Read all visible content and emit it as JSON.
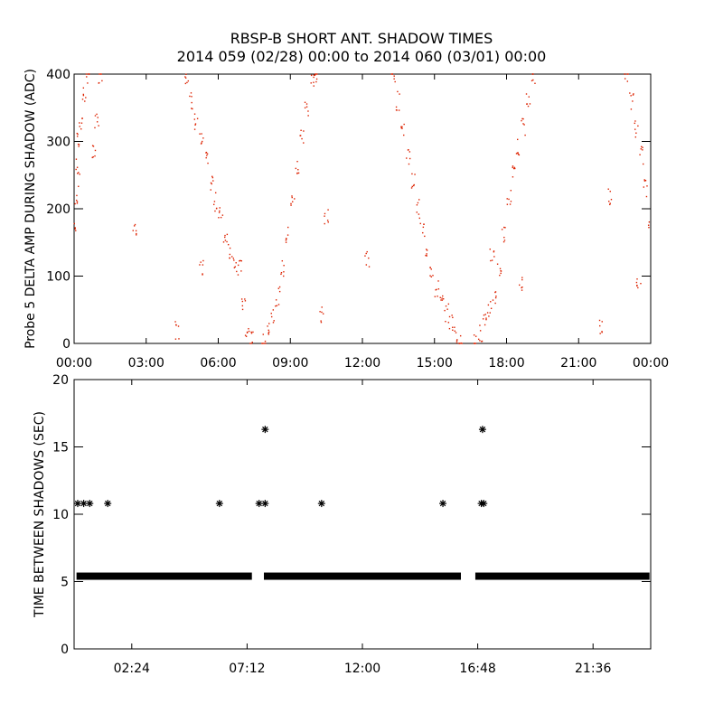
{
  "title_line1": "RBSP-B SHORT ANT. SHADOW TIMES",
  "title_line2": "2014 059 (02/28) 00:00 to 2014 060 (03/01) 00:00",
  "chart_data": [
    {
      "type": "scatter",
      "panel": "top",
      "ylabel": "Probe 5 DELTA AMP DURING SHADOW (ADC)",
      "xlabel": "",
      "xlim": [
        "00:00",
        "24:00"
      ],
      "ylim": [
        0,
        400
      ],
      "x_ticks": [
        "00:00",
        "03:00",
        "06:00",
        "09:00",
        "12:00",
        "15:00",
        "18:00",
        "21:00",
        "00:00"
      ],
      "y_ticks": [
        0,
        100,
        200,
        300,
        400
      ],
      "color": "#dd2200",
      "series": [
        {
          "points_hours_adc": [
            [
              0.05,
              170
            ],
            [
              0.1,
              220
            ],
            [
              0.15,
              260
            ],
            [
              0.2,
              300
            ],
            [
              0.3,
              330
            ],
            [
              0.4,
              370
            ],
            [
              0.55,
              400
            ],
            [
              0.85,
              280
            ],
            [
              0.95,
              330
            ],
            [
              1.1,
              400
            ],
            [
              4.7,
              400
            ],
            [
              4.9,
              360
            ],
            [
              5.1,
              330
            ],
            [
              5.3,
              300
            ],
            [
              5.5,
              270
            ],
            [
              5.7,
              240
            ],
            [
              5.9,
              210
            ],
            [
              6.1,
              190
            ],
            [
              6.3,
              160
            ],
            [
              6.5,
              140
            ],
            [
              6.7,
              120
            ],
            [
              6.9,
              110
            ],
            [
              7.05,
              60
            ],
            [
              7.2,
              15
            ],
            [
              7.4,
              5
            ],
            [
              7.9,
              0
            ],
            [
              8.1,
              25
            ],
            [
              8.3,
              45
            ],
            [
              8.5,
              70
            ],
            [
              8.7,
              110
            ],
            [
              8.9,
              160
            ],
            [
              9.1,
              210
            ],
            [
              9.3,
              260
            ],
            [
              9.5,
              310
            ],
            [
              9.7,
              350
            ],
            [
              9.9,
              390
            ],
            [
              10.1,
              400
            ],
            [
              13.3,
              400
            ],
            [
              13.5,
              360
            ],
            [
              13.7,
              320
            ],
            [
              13.9,
              280
            ],
            [
              14.1,
              240
            ],
            [
              14.3,
              200
            ],
            [
              14.5,
              170
            ],
            [
              14.7,
              140
            ],
            [
              14.9,
              110
            ],
            [
              15.1,
              80
            ],
            [
              15.3,
              60
            ],
            [
              15.5,
              45
            ],
            [
              15.7,
              30
            ],
            [
              15.9,
              15
            ],
            [
              16.1,
              0
            ],
            [
              16.7,
              0
            ],
            [
              16.9,
              15
            ],
            [
              17.1,
              30
            ],
            [
              17.3,
              50
            ],
            [
              17.5,
              70
            ],
            [
              17.7,
              110
            ],
            [
              17.9,
              160
            ],
            [
              18.1,
              220
            ],
            [
              18.3,
              260
            ],
            [
              18.5,
              290
            ],
            [
              18.7,
              320
            ],
            [
              18.9,
              360
            ],
            [
              19.1,
              400
            ],
            [
              23.0,
              400
            ],
            [
              23.2,
              360
            ],
            [
              23.4,
              320
            ],
            [
              23.6,
              280
            ],
            [
              23.8,
              230
            ],
            [
              24.0,
              180
            ],
            [
              2.5,
              165
            ],
            [
              4.3,
              20
            ],
            [
              5.3,
              110
            ],
            [
              10.3,
              45
            ],
            [
              10.5,
              190
            ],
            [
              12.2,
              125
            ],
            [
              17.4,
              130
            ],
            [
              18.6,
              90
            ],
            [
              21.9,
              25
            ],
            [
              22.3,
              220
            ],
            [
              23.5,
              95
            ]
          ]
        }
      ]
    },
    {
      "type": "scatter",
      "panel": "bottom",
      "ylabel": "TIME BETWEEN SHADOWS (SEC)",
      "xlabel": "",
      "xlim": [
        "00:00",
        "24:00"
      ],
      "ylim": [
        0,
        20
      ],
      "x_ticks": [
        "02:24",
        "07:12",
        "12:00",
        "16:48",
        "21:36"
      ],
      "y_ticks": [
        0,
        5,
        10,
        15,
        20
      ],
      "marker": "*",
      "color": "#000000",
      "baseline": {
        "y": 5.4,
        "x_range_hours": [
          0.1,
          23.95
        ],
        "gaps_hours": [
          [
            7.4,
            7.9
          ],
          [
            16.1,
            16.7
          ]
        ]
      },
      "series": [
        {
          "points_hours_sec": [
            [
              0.15,
              10.8
            ],
            [
              0.4,
              10.8
            ],
            [
              0.65,
              10.8
            ],
            [
              1.4,
              10.8
            ],
            [
              6.05,
              10.8
            ],
            [
              7.7,
              10.8
            ],
            [
              7.95,
              10.8
            ],
            [
              10.3,
              10.8
            ],
            [
              15.35,
              10.8
            ],
            [
              16.95,
              10.8
            ],
            [
              17.05,
              10.8
            ],
            [
              7.95,
              16.3
            ],
            [
              17.0,
              16.3
            ]
          ]
        }
      ]
    }
  ]
}
